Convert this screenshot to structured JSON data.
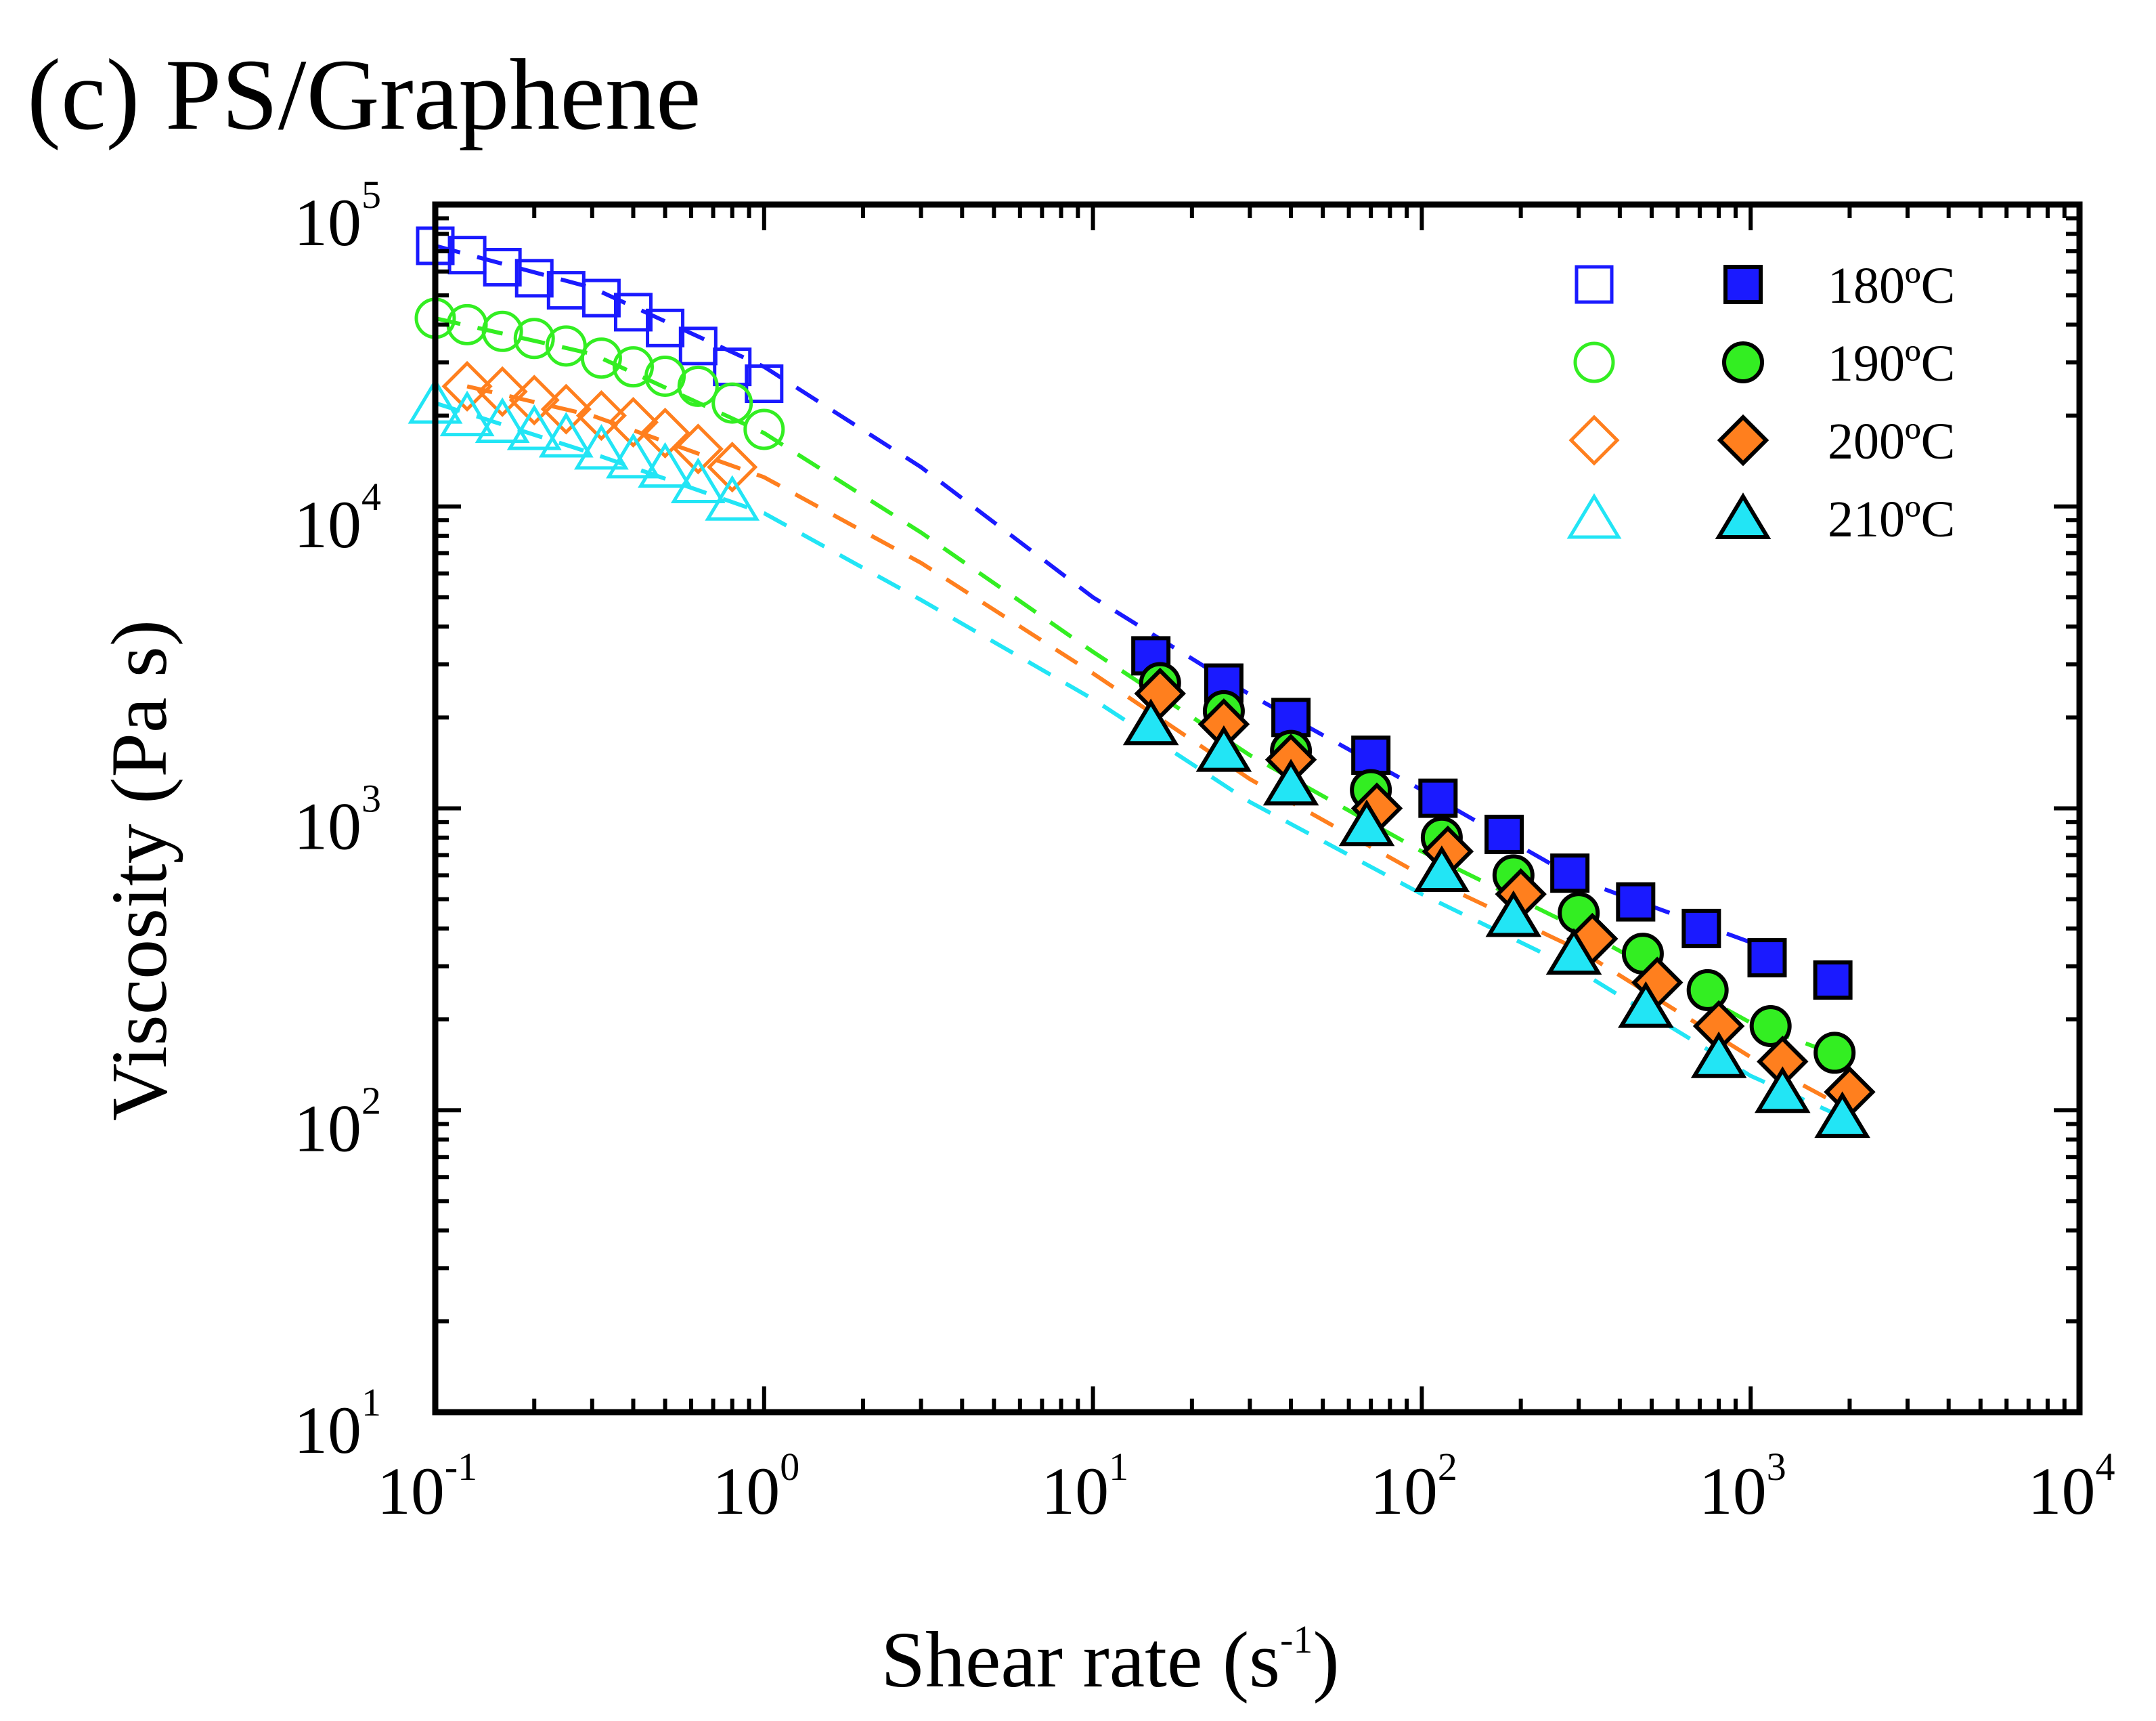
{
  "chart_data": {
    "type": "scatter",
    "title": "(c) PS/Graphene",
    "xlabel": {
      "base": "Shear rate (s",
      "exponent": "-1",
      "close": ")"
    },
    "ylabel": "Viscosity (Pa s)",
    "xscale": "log",
    "yscale": "log",
    "xlim": [
      0.1,
      10000
    ],
    "ylim": [
      10,
      100000
    ],
    "x_ticks": [
      {
        "value": 0.1,
        "base": "10",
        "exp": "-1"
      },
      {
        "value": 1,
        "base": "10",
        "exp": "0"
      },
      {
        "value": 10,
        "base": "10",
        "exp": "1"
      },
      {
        "value": 100,
        "base": "10",
        "exp": "2"
      },
      {
        "value": 1000,
        "base": "10",
        "exp": "3"
      },
      {
        "value": 10000,
        "base": "10",
        "exp": "4"
      }
    ],
    "y_ticks": [
      {
        "value": 10,
        "base": "10",
        "exp": "1"
      },
      {
        "value": 100,
        "base": "10",
        "exp": "2"
      },
      {
        "value": 1000,
        "base": "10",
        "exp": "3"
      },
      {
        "value": 10000,
        "base": "10",
        "exp": "4"
      },
      {
        "value": 100000,
        "base": "10",
        "exp": "5"
      }
    ],
    "legend_position": "top-right",
    "series": [
      {
        "name": "180ºC",
        "color": "#1a1aff",
        "marker": "square",
        "open": {
          "x": [
            0.1,
            0.125,
            0.16,
            0.2,
            0.25,
            0.32,
            0.4,
            0.5,
            0.63,
            0.8,
            1.0
          ],
          "y": [
            73000,
            68000,
            62000,
            57000,
            52000,
            49000,
            44000,
            39000,
            34000,
            29000,
            25500
          ]
        },
        "filled": {
          "x": [
            15,
            25,
            40,
            70,
            112,
            178,
            282,
            447,
            708,
            1122,
            1778
          ],
          "y": [
            3200,
            2600,
            2000,
            1500,
            1080,
            820,
            610,
            490,
            400,
            320,
            270
          ]
        },
        "fit": {
          "x": [
            0.1,
            0.3,
            1,
            3,
            10,
            30,
            100,
            300,
            1000
          ],
          "y": [
            73000,
            53000,
            29000,
            13500,
            5000,
            2380,
            1150,
            580,
            360
          ]
        }
      },
      {
        "name": "190ºC",
        "color": "#33ee22",
        "marker": "circle",
        "open": {
          "x": [
            0.1,
            0.125,
            0.16,
            0.2,
            0.25,
            0.32,
            0.4,
            0.5,
            0.63,
            0.8,
            1.0
          ],
          "y": [
            42000,
            40000,
            38000,
            36000,
            34000,
            31000,
            29000,
            27000,
            25000,
            22000,
            18000
          ]
        },
        "filled": {
          "x": [
            16,
            25,
            40,
            70,
            115,
            190,
            300,
            470,
            740,
            1150,
            1800
          ],
          "y": [
            2600,
            2100,
            1550,
            1150,
            800,
            600,
            450,
            330,
            250,
            190,
            155
          ]
        },
        "fit": {
          "x": [
            0.1,
            0.3,
            1,
            3,
            10,
            30,
            100,
            300,
            1000,
            1900
          ],
          "y": [
            42000,
            32000,
            17500,
            8200,
            3300,
            1500,
            720,
            400,
            195,
            150
          ]
        }
      },
      {
        "name": "200ºC",
        "color": "#ff7f1e",
        "marker": "diamond",
        "open": {
          "x": [
            0.125,
            0.16,
            0.2,
            0.25,
            0.32,
            0.4,
            0.5,
            0.63,
            0.8
          ],
          "y": [
            25000,
            24000,
            22500,
            21000,
            20000,
            19000,
            17500,
            15500,
            13500
          ]
        },
        "filled": {
          "x": [
            16,
            25,
            40,
            73,
            120,
            200,
            330,
            520,
            800,
            1250,
            2000
          ],
          "y": [
            2400,
            1900,
            1450,
            1000,
            720,
            520,
            370,
            265,
            190,
            145,
            115
          ]
        },
        "fit": {
          "x": [
            0.125,
            0.3,
            1,
            3,
            10,
            30,
            100,
            300,
            1000,
            2000
          ],
          "y": [
            25000,
            20000,
            12500,
            6500,
            2800,
            1250,
            600,
            340,
            150,
            100
          ]
        }
      },
      {
        "name": "210ºC",
        "color": "#22e5f5",
        "marker": "triangle",
        "open": {
          "x": [
            0.1,
            0.125,
            0.16,
            0.2,
            0.25,
            0.32,
            0.4,
            0.5,
            0.63,
            0.8
          ],
          "y": [
            22000,
            20000,
            19000,
            18000,
            17000,
            15500,
            14500,
            13500,
            12000,
            10500
          ]
        },
        "filled": {
          "x": [
            15,
            25,
            40,
            68,
            115,
            190,
            290,
            480,
            800,
            1250,
            1900
          ],
          "y": [
            1900,
            1550,
            1200,
            880,
            620,
            440,
            330,
            220,
            150,
            115,
            95
          ]
        },
        "fit": {
          "x": [
            0.1,
            0.3,
            1,
            3,
            10,
            30,
            100,
            300,
            1000,
            1900
          ],
          "y": [
            22000,
            15000,
            9500,
            4900,
            2300,
            1050,
            520,
            290,
            130,
            95
          ]
        }
      }
    ]
  }
}
